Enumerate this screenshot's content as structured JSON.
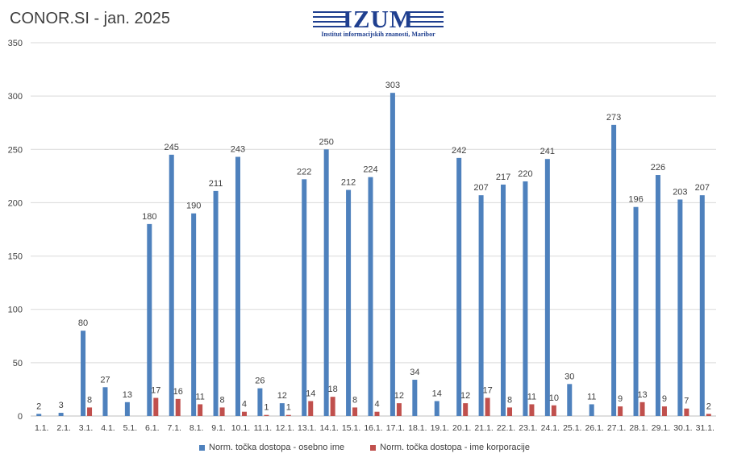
{
  "header": {
    "title": "CONOR.SI - jan. 2025",
    "logo_text": "IZUM",
    "logo_subtitle": "Institut informacijskih znanosti, Maribor"
  },
  "colors": {
    "series1": "#4e81bd",
    "series2": "#c0504d",
    "grid": "#d9d9d9",
    "text": "#404040"
  },
  "legend": {
    "series1": "Norm. točka dostopa - osebno ime",
    "series2": "Norm. točka dostopa - ime korporacije"
  },
  "chart_data": {
    "type": "bar",
    "title": "CONOR.SI - jan. 2025",
    "xlabel": "",
    "ylabel": "",
    "ylim": [
      0,
      350
    ],
    "yticks": [
      0,
      50,
      100,
      150,
      200,
      250,
      300,
      350
    ],
    "grid": true,
    "legend_position": "bottom",
    "categories": [
      "1.1.",
      "2.1.",
      "3.1.",
      "4.1.",
      "5.1.",
      "6.1.",
      "7.1.",
      "8.1.",
      "9.1.",
      "10.1.",
      "11.1.",
      "12.1.",
      "13.1.",
      "14.1.",
      "15.1.",
      "16.1.",
      "17.1.",
      "18.1.",
      "19.1.",
      "20.1.",
      "21.1.",
      "22.1.",
      "23.1.",
      "24.1.",
      "25.1.",
      "26.1.",
      "27.1.",
      "28.1.",
      "29.1.",
      "30.1.",
      "31.1."
    ],
    "series": [
      {
        "name": "Norm. točka dostopa - osebno ime",
        "values": [
          2,
          3,
          80,
          27,
          13,
          180,
          245,
          190,
          211,
          243,
          26,
          12,
          222,
          250,
          212,
          224,
          303,
          34,
          14,
          242,
          207,
          217,
          220,
          241,
          30,
          11,
          273,
          196,
          226,
          203,
          207
        ]
      },
      {
        "name": "Norm. točka dostopa - ime korporacije",
        "values": [
          null,
          null,
          8,
          null,
          null,
          17,
          16,
          11,
          8,
          4,
          1,
          1,
          14,
          18,
          8,
          4,
          12,
          null,
          null,
          12,
          17,
          8,
          11,
          10,
          null,
          null,
          9,
          13,
          9,
          7,
          2
        ]
      }
    ]
  }
}
